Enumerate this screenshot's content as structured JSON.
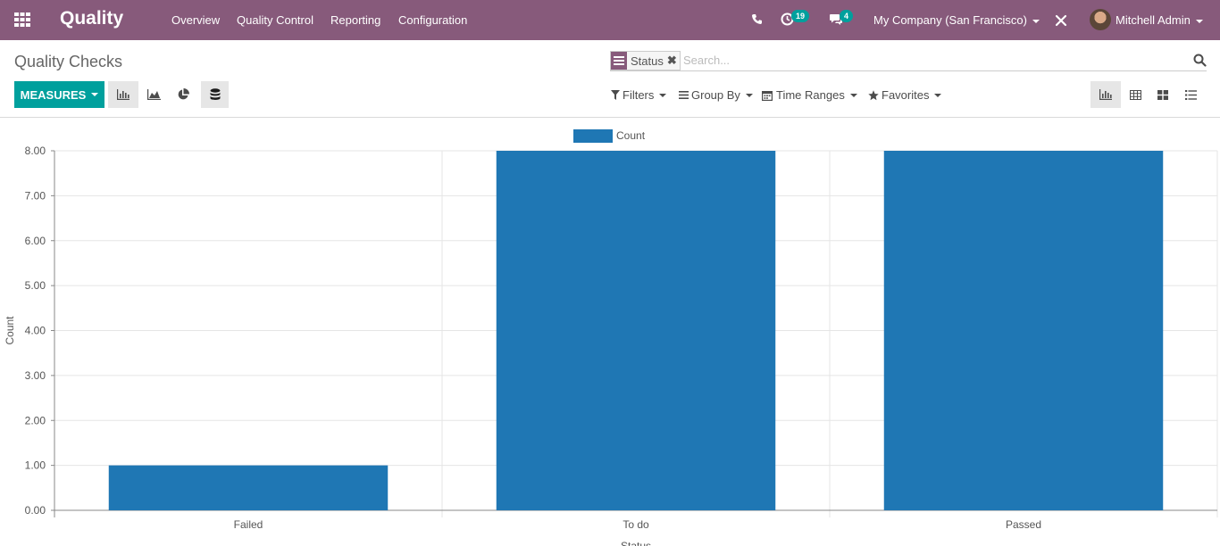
{
  "topbar": {
    "app_title": "Quality",
    "menu": [
      "Overview",
      "Quality Control",
      "Reporting",
      "Configuration"
    ],
    "activity_count": "19",
    "message_count": "4",
    "company": "My Company (San Francisco)",
    "user": "Mitchell Admin"
  },
  "control_panel": {
    "breadcrumb": "Quality Checks",
    "facet_value": "Status",
    "search_placeholder": "Search...",
    "measures_label": "MEASURES",
    "filters_label": "Filters",
    "groupby_label": "Group By",
    "timeranges_label": "Time Ranges",
    "favorites_label": "Favorites"
  },
  "colors": {
    "brand": "#875a7b",
    "accent": "#00a09d",
    "bar": "#1f77b4"
  },
  "chart_data": {
    "type": "bar",
    "categories": [
      "Failed",
      "To do",
      "Passed"
    ],
    "series": [
      {
        "name": "Count",
        "values": [
          1,
          8,
          8
        ]
      }
    ],
    "xlabel": "Status",
    "ylabel": "Count",
    "ylim": [
      0,
      8
    ],
    "yticks": [
      "0.00",
      "1.00",
      "2.00",
      "3.00",
      "4.00",
      "5.00",
      "6.00",
      "7.00",
      "8.00"
    ],
    "grid": true,
    "legend": "top-center"
  }
}
